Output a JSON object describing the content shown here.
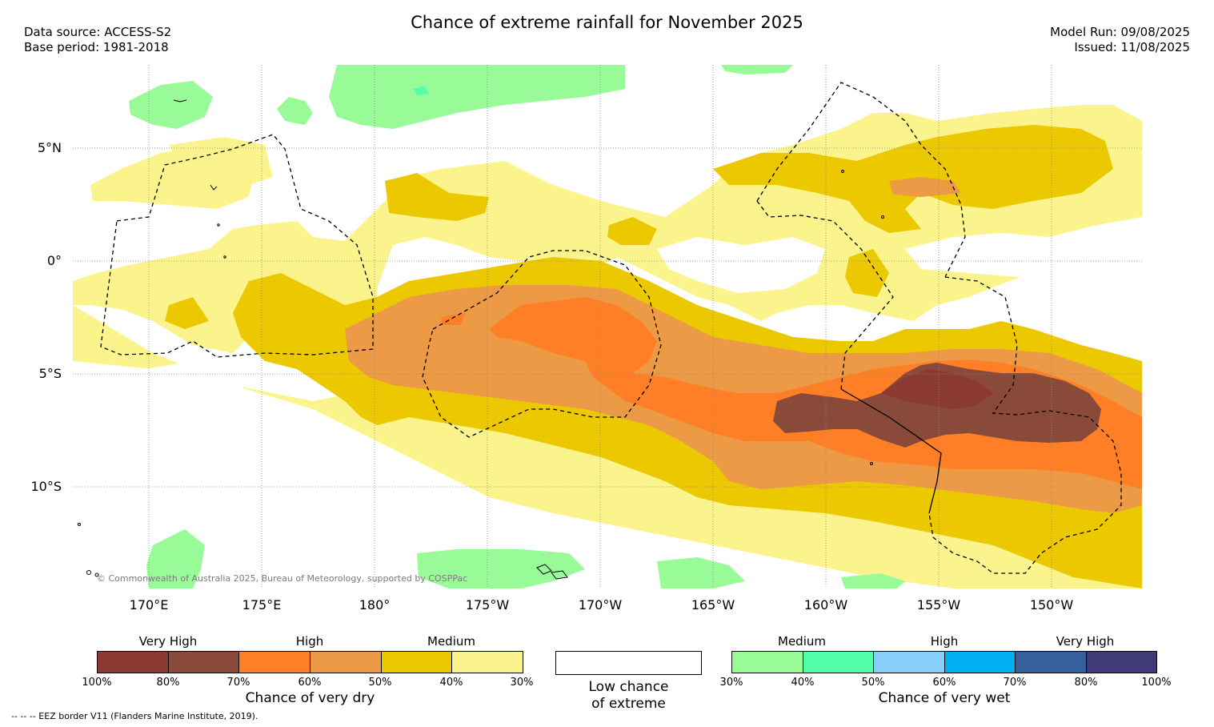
{
  "header": {
    "title": "Chance of extreme rainfall for November 2025",
    "data_source": "Data source: ACCESS-S2",
    "base_period": "Base period: 1981-2018",
    "model_run": "Model Run: 09/08/2025",
    "issued": "Issued: 11/08/2025"
  },
  "map": {
    "lat_labels": [
      "5°N",
      "0°",
      "5°S",
      "10°S"
    ],
    "lon_labels": [
      "170°E",
      "175°E",
      "180°",
      "175°W",
      "170°W",
      "165°W",
      "160°W",
      "155°W",
      "150°W"
    ],
    "copyright": "© Commonwealth of Australia 2025, Bureau of Meteorology, supported by COSPPac"
  },
  "legend": {
    "dry": {
      "categories": [
        "Very High",
        "High",
        "Medium"
      ],
      "ticks": [
        "100%",
        "80%",
        "70%",
        "60%",
        "50%",
        "40%",
        "30%"
      ],
      "colors": [
        "#8b3a32",
        "#8a4a3a",
        "#ff7f27",
        "#ec9a45",
        "#ebc800",
        "#fbf48c"
      ],
      "title": "Chance of very dry"
    },
    "neutral": {
      "line1": "Low chance",
      "line2": "of extreme",
      "color": "#ffffff"
    },
    "wet": {
      "categories": [
        "Medium",
        "High",
        "Very High"
      ],
      "ticks": [
        "30%",
        "40%",
        "50%",
        "60%",
        "70%",
        "80%",
        "100%"
      ],
      "colors": [
        "#98fb98",
        "#55ffaa",
        "#87cefa",
        "#00b0f0",
        "#365f9e",
        "#403a78"
      ],
      "title": "Chance of very wet"
    }
  },
  "footnote": "--  --  -- EEZ border V11 (Flanders Marine Institute, 2019)."
}
